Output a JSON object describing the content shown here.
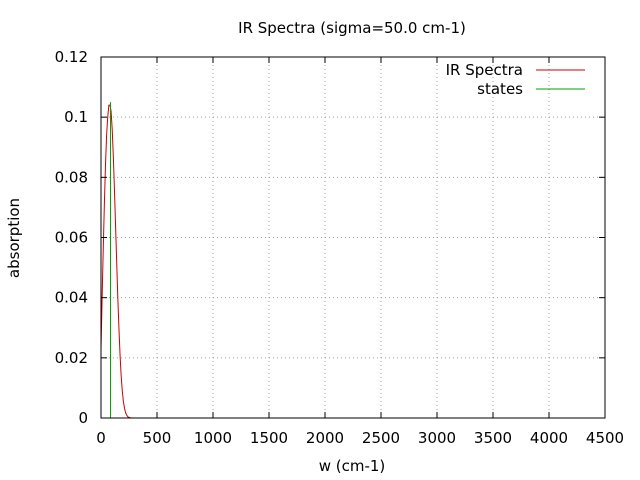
{
  "chart_data": {
    "type": "line",
    "title": "IR Spectra (sigma=50.0 cm-1)",
    "xlabel": "w (cm-1)",
    "ylabel": "absorption",
    "xlim": [
      0,
      4500
    ],
    "ylim": [
      0,
      0.12
    ],
    "xticks": [
      0,
      500,
      1000,
      1500,
      2000,
      2500,
      3000,
      3500,
      4000,
      4500
    ],
    "yticks": [
      0,
      0.02,
      0.04,
      0.06,
      0.08,
      0.1,
      0.12
    ],
    "xtick_labels": [
      "0",
      "500",
      "1000",
      "1500",
      "2000",
      "2500",
      "3000",
      "3500",
      "4000",
      "4500"
    ],
    "ytick_labels": [
      "0",
      "0.02",
      "0.04",
      "0.06",
      "0.08",
      "0.1",
      "0.12"
    ],
    "grid": true,
    "legend_position": "top-right",
    "series": [
      {
        "name": "IR Spectra",
        "color": "#cc0000",
        "style": "line",
        "x": [
          0,
          10,
          20,
          30,
          40,
          50,
          60,
          70,
          80,
          90,
          100,
          110,
          120,
          130,
          140,
          150,
          160,
          170,
          180,
          190,
          200,
          210,
          220,
          230,
          240,
          250,
          260,
          270,
          280,
          300,
          400,
          4500
        ],
        "y": [
          0.023,
          0.04,
          0.056,
          0.071,
          0.084,
          0.094,
          0.1,
          0.104,
          0.104,
          0.102,
          0.096,
          0.087,
          0.076,
          0.064,
          0.052,
          0.04,
          0.03,
          0.021,
          0.014,
          0.009,
          0.0055,
          0.0032,
          0.0017,
          0.0009,
          0.0004,
          0.0002,
          8e-05,
          3e-05,
          1e-05,
          0,
          0,
          0
        ]
      },
      {
        "name": "states",
        "color": "#00a000",
        "style": "impulse",
        "x": [
          85
        ],
        "y": [
          0.105
        ]
      }
    ]
  }
}
